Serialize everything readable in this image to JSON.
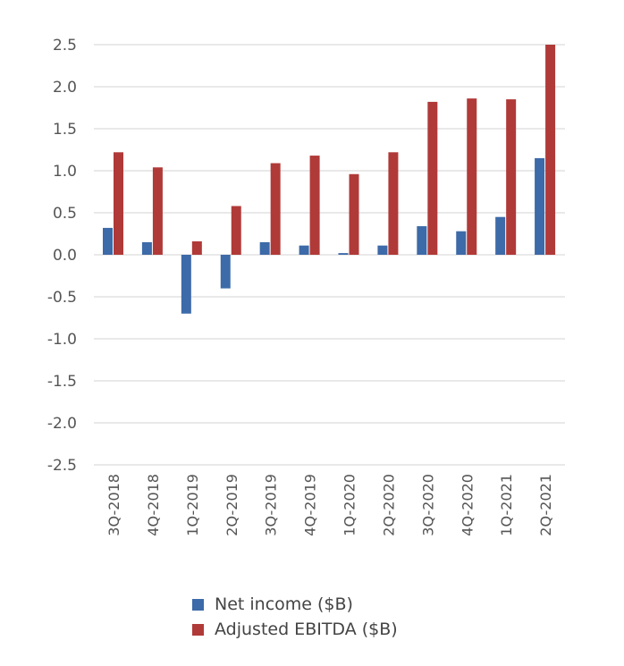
{
  "chart_data": {
    "type": "bar",
    "categories": [
      "3Q-2018",
      "4Q-2018",
      "1Q-2019",
      "2Q-2019",
      "3Q-2019",
      "4Q-2019",
      "1Q-2020",
      "2Q-2020",
      "3Q-2020",
      "4Q-2020",
      "1Q-2021",
      "2Q-2021"
    ],
    "series": [
      {
        "name": "Net income ($B)",
        "color": "#3d6aa8",
        "values": [
          0.32,
          0.15,
          -0.7,
          -0.4,
          0.15,
          0.11,
          0.02,
          0.11,
          0.34,
          0.28,
          0.45,
          1.15
        ]
      },
      {
        "name": "Adjusted EBITDA ($B)",
        "color": "#b03a38",
        "values": [
          1.22,
          1.04,
          0.16,
          0.58,
          1.09,
          1.18,
          0.96,
          1.22,
          1.82,
          1.86,
          1.85,
          2.5
        ]
      }
    ],
    "yticks": [
      "2.5",
      "2.0",
      "1.5",
      "1.0",
      "0.5",
      "0.0",
      "-0.5",
      "-1.0",
      "-1.5",
      "-2.0",
      "-2.5"
    ],
    "ylim": [
      -2.5,
      2.5
    ],
    "grid": true,
    "legend": "bottom"
  }
}
